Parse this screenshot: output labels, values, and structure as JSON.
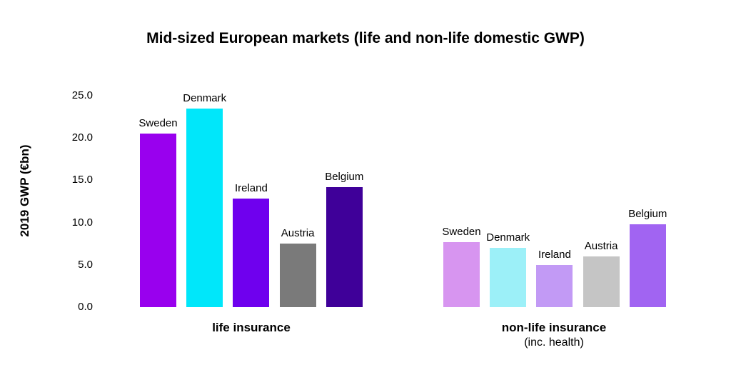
{
  "chart_data": {
    "type": "bar",
    "title": "Mid-sized European markets (life and non-life domestic GWP)",
    "ylabel": "2019 GWP (€bn)",
    "ylim": [
      0,
      25
    ],
    "ytick_labels": [
      "0.0",
      "5.0",
      "10.0",
      "15.0",
      "20.0",
      "25.0"
    ],
    "grid": false,
    "legend_position": "none",
    "bar_label_position": "above-each-bar",
    "categories": [
      "Sweden",
      "Denmark",
      "Ireland",
      "Austria",
      "Belgium"
    ],
    "groups": [
      {
        "label": "life insurance",
        "sublabel": "",
        "values": [
          20.5,
          23.5,
          12.8,
          7.5,
          14.2
        ],
        "colors": [
          "#9900EE",
          "#00E7FA",
          "#6F00EE",
          "#7A7A7A",
          "#3F0099"
        ]
      },
      {
        "label": "non-life insurance",
        "sublabel": "(inc. health)",
        "values": [
          7.7,
          7.0,
          5.0,
          6.0,
          9.8
        ],
        "colors": [
          "#D795F0",
          "#9CF0F8",
          "#C29AF5",
          "#C5C5C5",
          "#A164F2"
        ]
      }
    ]
  }
}
